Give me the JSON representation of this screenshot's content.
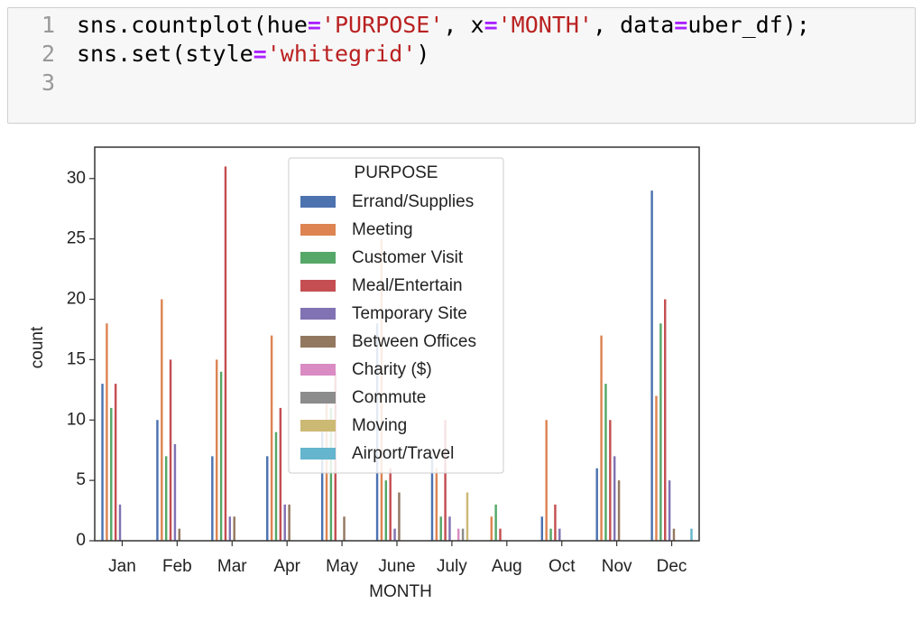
{
  "code_cell": {
    "line_numbers": [
      1,
      2,
      3
    ],
    "lines": [
      "sns.countplot(hue='PURPOSE', x='MONTH', data=uber_df);",
      "sns.set(style='whitegrid')"
    ]
  },
  "chart_data": {
    "type": "bar",
    "xlabel": "MONTH",
    "ylabel": "count",
    "legend_title": "PURPOSE",
    "legend": "upper center",
    "grid": false,
    "categories": [
      "Jan",
      "Feb",
      "Mar",
      "Apr",
      "May",
      "June",
      "July",
      "Aug",
      "Oct",
      "Nov",
      "Dec"
    ],
    "ylim": [
      0,
      32.6
    ],
    "yticks": [
      0,
      5,
      10,
      15,
      20,
      25,
      30
    ],
    "series": [
      {
        "name": "Errand/Supplies",
        "color": "#4c72b0",
        "values": [
          13,
          10,
          7,
          7,
          10,
          18,
          7,
          0,
          2,
          6,
          29
        ]
      },
      {
        "name": "Meeting",
        "color": "#dd8452",
        "values": [
          18,
          20,
          15,
          17,
          12,
          25,
          6,
          2,
          10,
          17,
          12
        ]
      },
      {
        "name": "Customer Visit",
        "color": "#55a868",
        "values": [
          11,
          7,
          14,
          9,
          11,
          5,
          2,
          3,
          1,
          13,
          18
        ]
      },
      {
        "name": "Meal/Entertain",
        "color": "#c44e52",
        "values": [
          13,
          15,
          31,
          11,
          14,
          6,
          10,
          1,
          3,
          10,
          20
        ]
      },
      {
        "name": "Temporary Site",
        "color": "#8172b3",
        "values": [
          3,
          8,
          2,
          3,
          0,
          1,
          2,
          0,
          1,
          7,
          5
        ]
      },
      {
        "name": "Between Offices",
        "color": "#937860",
        "values": [
          0,
          1,
          2,
          3,
          2,
          4,
          0,
          0,
          0,
          5,
          1
        ]
      },
      {
        "name": "Charity ($)",
        "color": "#da8bc3",
        "values": [
          0,
          0,
          0,
          0,
          0,
          0,
          1,
          0,
          0,
          0,
          0
        ]
      },
      {
        "name": "Commute",
        "color": "#8c8c8c",
        "values": [
          0,
          0,
          0,
          0,
          0,
          0,
          1,
          0,
          0,
          0,
          0
        ]
      },
      {
        "name": "Moving",
        "color": "#ccb974",
        "values": [
          0,
          0,
          0,
          0,
          0,
          0,
          4,
          0,
          0,
          0,
          0
        ]
      },
      {
        "name": "Airport/Travel",
        "color": "#64b5cd",
        "values": [
          0,
          0,
          0,
          0,
          0,
          0,
          0,
          0,
          0,
          0,
          1
        ]
      }
    ]
  }
}
